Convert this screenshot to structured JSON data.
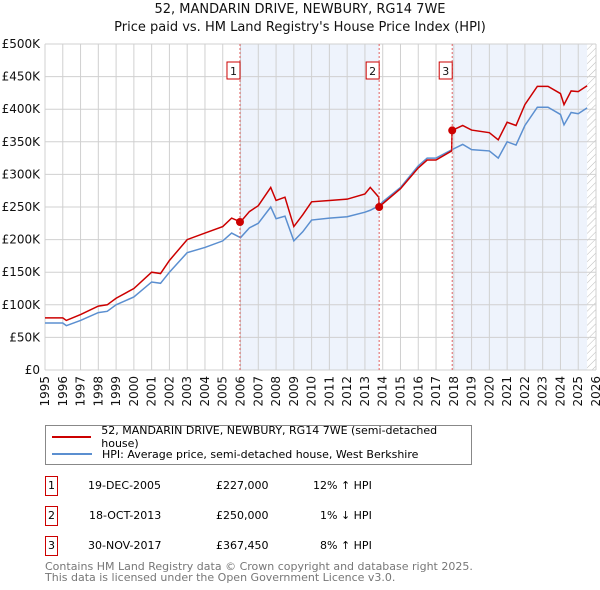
{
  "header": {
    "title": "52, MANDARIN DRIVE, NEWBURY, RG14 7WE",
    "subtitle": "Price paid vs. HM Land Registry's House Price Index (HPI)"
  },
  "chart_data": {
    "type": "line",
    "title": "52, MANDARIN DRIVE, NEWBURY, RG14 7WE",
    "subtitle": "Price paid vs. HM Land Registry's House Price Index (HPI)",
    "xlim": [
      1995,
      2026
    ],
    "ylim": [
      0,
      500000
    ],
    "xticks": [
      "1995",
      "1996",
      "1997",
      "1998",
      "1999",
      "2000",
      "2001",
      "2002",
      "2003",
      "2004",
      "2005",
      "2006",
      "2007",
      "2008",
      "2009",
      "2010",
      "2011",
      "2012",
      "2013",
      "2014",
      "2015",
      "2016",
      "2017",
      "2018",
      "2019",
      "2020",
      "2021",
      "2022",
      "2023",
      "2024",
      "2025",
      "2026"
    ],
    "yticks": [
      {
        "v": 0,
        "label": "£0"
      },
      {
        "v": 50000,
        "label": "£50K"
      },
      {
        "v": 100000,
        "label": "£100K"
      },
      {
        "v": 150000,
        "label": "£150K"
      },
      {
        "v": 200000,
        "label": "£200K"
      },
      {
        "v": 250000,
        "label": "£250K"
      },
      {
        "v": 300000,
        "label": "£300K"
      },
      {
        "v": 350000,
        "label": "£350K"
      },
      {
        "v": 400000,
        "label": "£400K"
      },
      {
        "v": 450000,
        "label": "£450K"
      },
      {
        "v": 500000,
        "label": "£500K"
      }
    ],
    "grid": true,
    "series": [
      {
        "name": "52, MANDARIN DRIVE, NEWBURY, RG14 7WE (semi-detached house)",
        "color": "#cc0000",
        "x": [
          1995,
          1996,
          1996.2,
          1997,
          1998,
          1998.5,
          1999,
          2000,
          2001,
          2001.5,
          2002,
          2003,
          2004,
          2005,
          2005.5,
          2006,
          2006.5,
          2007,
          2007.7,
          2008,
          2008.5,
          2009,
          2009.5,
          2010,
          2011,
          2012,
          2013,
          2013.3,
          2013.78,
          2013.8,
          2014,
          2015,
          2016,
          2016.5,
          2017,
          2017.88,
          2017.9,
          2018.5,
          2019,
          2020,
          2020.5,
          2021,
          2021.5,
          2022,
          2022.7,
          2023.3,
          2024,
          2024.2,
          2024.6,
          2025,
          2025.5
        ],
        "y": [
          80000,
          80000,
          76000,
          85000,
          98000,
          100000,
          110000,
          125000,
          150000,
          148000,
          168000,
          200000,
          210000,
          220000,
          233000,
          227000,
          243000,
          252000,
          280000,
          260000,
          265000,
          220000,
          238000,
          258000,
          260000,
          262000,
          270000,
          280000,
          265000,
          250000,
          255000,
          278000,
          310000,
          322000,
          322000,
          336000,
          367450,
          375000,
          368000,
          364000,
          353000,
          380000,
          375000,
          407000,
          435000,
          435000,
          424000,
          407000,
          428000,
          427000,
          436000
        ]
      },
      {
        "name": "HPI: Average price, semi-detached house, West Berkshire",
        "color": "#5b8fd0",
        "x": [
          1995,
          1996,
          1996.2,
          1997,
          1998,
          1998.5,
          1999,
          2000,
          2001,
          2001.5,
          2002,
          2003,
          2004,
          2005,
          2005.5,
          2006,
          2006.5,
          2007,
          2007.7,
          2008,
          2008.5,
          2009,
          2009.5,
          2010,
          2011,
          2012,
          2013,
          2013.3,
          2013.8,
          2014,
          2015,
          2016,
          2016.5,
          2017,
          2017.9,
          2018.5,
          2019,
          2020,
          2020.5,
          2021,
          2021.5,
          2022,
          2022.7,
          2023.3,
          2024,
          2024.2,
          2024.6,
          2025,
          2025.5
        ],
        "y": [
          72000,
          72000,
          68000,
          76000,
          88000,
          90000,
          100000,
          112000,
          135000,
          133000,
          150000,
          180000,
          188000,
          198000,
          210000,
          203000,
          218000,
          225000,
          250000,
          232000,
          236000,
          198000,
          212000,
          230000,
          233000,
          235000,
          242000,
          245000,
          252000,
          258000,
          280000,
          313000,
          325000,
          325000,
          338000,
          346000,
          338000,
          336000,
          325000,
          350000,
          345000,
          375000,
          403000,
          403000,
          392000,
          376000,
          395000,
          393000,
          402000
        ]
      }
    ],
    "annotations": [
      {
        "label": "1",
        "x": 2005.97,
        "price": 227000
      },
      {
        "label": "2",
        "x": 2013.8,
        "price": 250000
      },
      {
        "label": "3",
        "x": 2017.91,
        "price": 367450
      }
    ],
    "shaded_ranges": [
      [
        2005.97,
        2013.8
      ],
      [
        2017.91,
        2025.5
      ]
    ],
    "hatched_from": 2025.5,
    "legend_position": "below"
  },
  "legend": {
    "items": [
      {
        "label": "52, MANDARIN DRIVE, NEWBURY, RG14 7WE (semi-detached house)",
        "color": "#cc0000"
      },
      {
        "label": "HPI: Average price, semi-detached house, West Berkshire",
        "color": "#5b8fd0"
      }
    ]
  },
  "transactions": [
    {
      "num": "1",
      "date": "19-DEC-2005",
      "price": "£227,000",
      "hpi": "12% ↑ HPI"
    },
    {
      "num": "2",
      "date": "18-OCT-2013",
      "price": "£250,000",
      "hpi": "1% ↓ HPI"
    },
    {
      "num": "3",
      "date": "30-NOV-2017",
      "price": "£367,450",
      "hpi": "8% ↑ HPI"
    }
  ],
  "footer": {
    "line1": "Contains HM Land Registry data © Crown copyright and database right 2025.",
    "line2": "This data is licensed under the Open Government Licence v3.0."
  }
}
